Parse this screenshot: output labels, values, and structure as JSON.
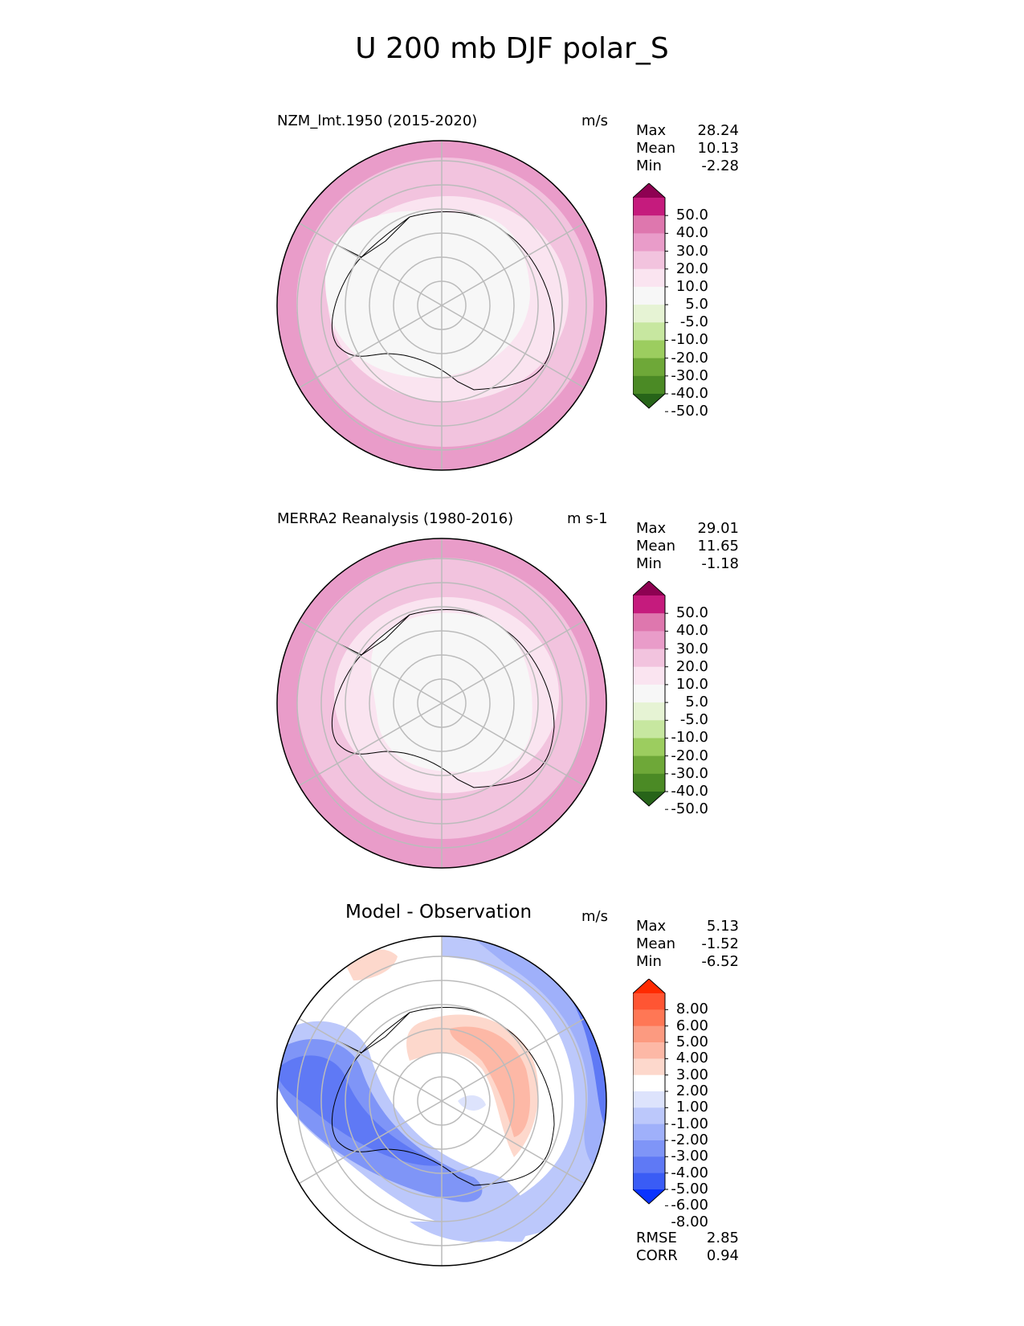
{
  "figure": {
    "title": "U 200 mb DJF polar_S"
  },
  "panels": [
    {
      "title": "NZM_lmt.1950 (2015-2020)",
      "units": "m/s",
      "stats": {
        "max_label": "Max",
        "max": "28.24",
        "mean_label": "Mean",
        "mean": "10.13",
        "min_label": "Min",
        "min": "-2.28"
      },
      "colorbar": {
        "ticks": [
          "50.0",
          "40.0",
          "30.0",
          "20.0",
          "10.0",
          "5.0",
          "-5.0",
          "-10.0",
          "-20.0",
          "-30.0",
          "-40.0",
          "-50.0"
        ],
        "colors": [
          "#8e0152",
          "#c51b7d",
          "#de77ae",
          "#e99cc9",
          "#f2c3de",
          "#fae4f0",
          "#f7f7f7",
          "#e6f3d4",
          "#c7e7a0",
          "#9ccd5f",
          "#6ea838",
          "#4b8a25",
          "#276419"
        ]
      }
    },
    {
      "title": "MERRA2 Reanalysis (1980-2016)",
      "units": "m s-1",
      "stats": {
        "max_label": "Max",
        "max": "29.01",
        "mean_label": "Mean",
        "mean": "11.65",
        "min_label": "Min",
        "min": "-1.18"
      },
      "colorbar": {
        "ticks": [
          "50.0",
          "40.0",
          "30.0",
          "20.0",
          "10.0",
          "5.0",
          "-5.0",
          "-10.0",
          "-20.0",
          "-30.0",
          "-40.0",
          "-50.0"
        ],
        "colors": [
          "#8e0152",
          "#c51b7d",
          "#de77ae",
          "#e99cc9",
          "#f2c3de",
          "#fae4f0",
          "#f7f7f7",
          "#e6f3d4",
          "#c7e7a0",
          "#9ccd5f",
          "#6ea838",
          "#4b8a25",
          "#276419"
        ]
      }
    },
    {
      "title": "Model - Observation",
      "units": "m/s",
      "stats": {
        "max_label": "Max",
        "max": "5.13",
        "mean_label": "Mean",
        "mean": "-1.52",
        "min_label": "Min",
        "min": "-6.52"
      },
      "colorbar": {
        "ticks": [
          "8.00",
          "6.00",
          "5.00",
          "4.00",
          "3.00",
          "2.00",
          "1.00",
          "-1.00",
          "-2.00",
          "-3.00",
          "-4.00",
          "-5.00",
          "-6.00",
          "-8.00"
        ],
        "colors": [
          "#ff2a00",
          "#ff5533",
          "#ff7755",
          "#fc9a80",
          "#fdb8a6",
          "#fdd8cc",
          "#ffffff",
          "#dde3fc",
          "#bcc8fb",
          "#9fb0fa",
          "#7f95f7",
          "#5f79f5",
          "#3a5cf5",
          "#0a33ff"
        ]
      },
      "metrics": {
        "rmse_label": "RMSE",
        "rmse": "2.85",
        "corr_label": "CORR",
        "corr": "0.94"
      }
    }
  ]
}
